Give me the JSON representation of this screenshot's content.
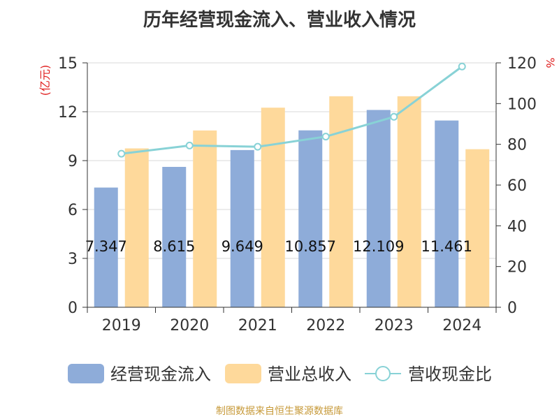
{
  "chart_data": {
    "type": "bar",
    "title": "历年经营现金流入、营业收入情况",
    "categories": [
      "2019",
      "2020",
      "2021",
      "2022",
      "2023",
      "2024"
    ],
    "series": [
      {
        "name": "经营现金流入",
        "type": "bar",
        "axis": "left",
        "color": "#8eacd9",
        "values": [
          7.347,
          8.615,
          9.649,
          10.857,
          12.109,
          11.461
        ],
        "labels": [
          "7.347",
          "8.615",
          "9.649",
          "10.857",
          "12.109",
          "11.461"
        ]
      },
      {
        "name": "营业总收入",
        "type": "bar",
        "axis": "left",
        "color": "#fed99b",
        "values": [
          9.75,
          10.85,
          12.25,
          12.95,
          12.95,
          9.7
        ]
      },
      {
        "name": "营收现金比",
        "type": "line",
        "axis": "right",
        "color": "#88d2d6",
        "values": [
          75.4,
          79.4,
          78.8,
          83.8,
          93.5,
          118.2
        ]
      }
    ],
    "ylabel_left": "(亿元)",
    "ylabel_right": "%",
    "ylim_left": [
      0,
      15
    ],
    "yticks_left": [
      0,
      3,
      6,
      9,
      12,
      15
    ],
    "ylim_right": [
      0,
      120
    ],
    "yticks_right": [
      0,
      20,
      40,
      60,
      80,
      100,
      120
    ],
    "grid": true,
    "legend_position": "bottom",
    "left_axis_label_color": "#e02020"
  },
  "footer": "制图数据来自恒生聚源数据库"
}
